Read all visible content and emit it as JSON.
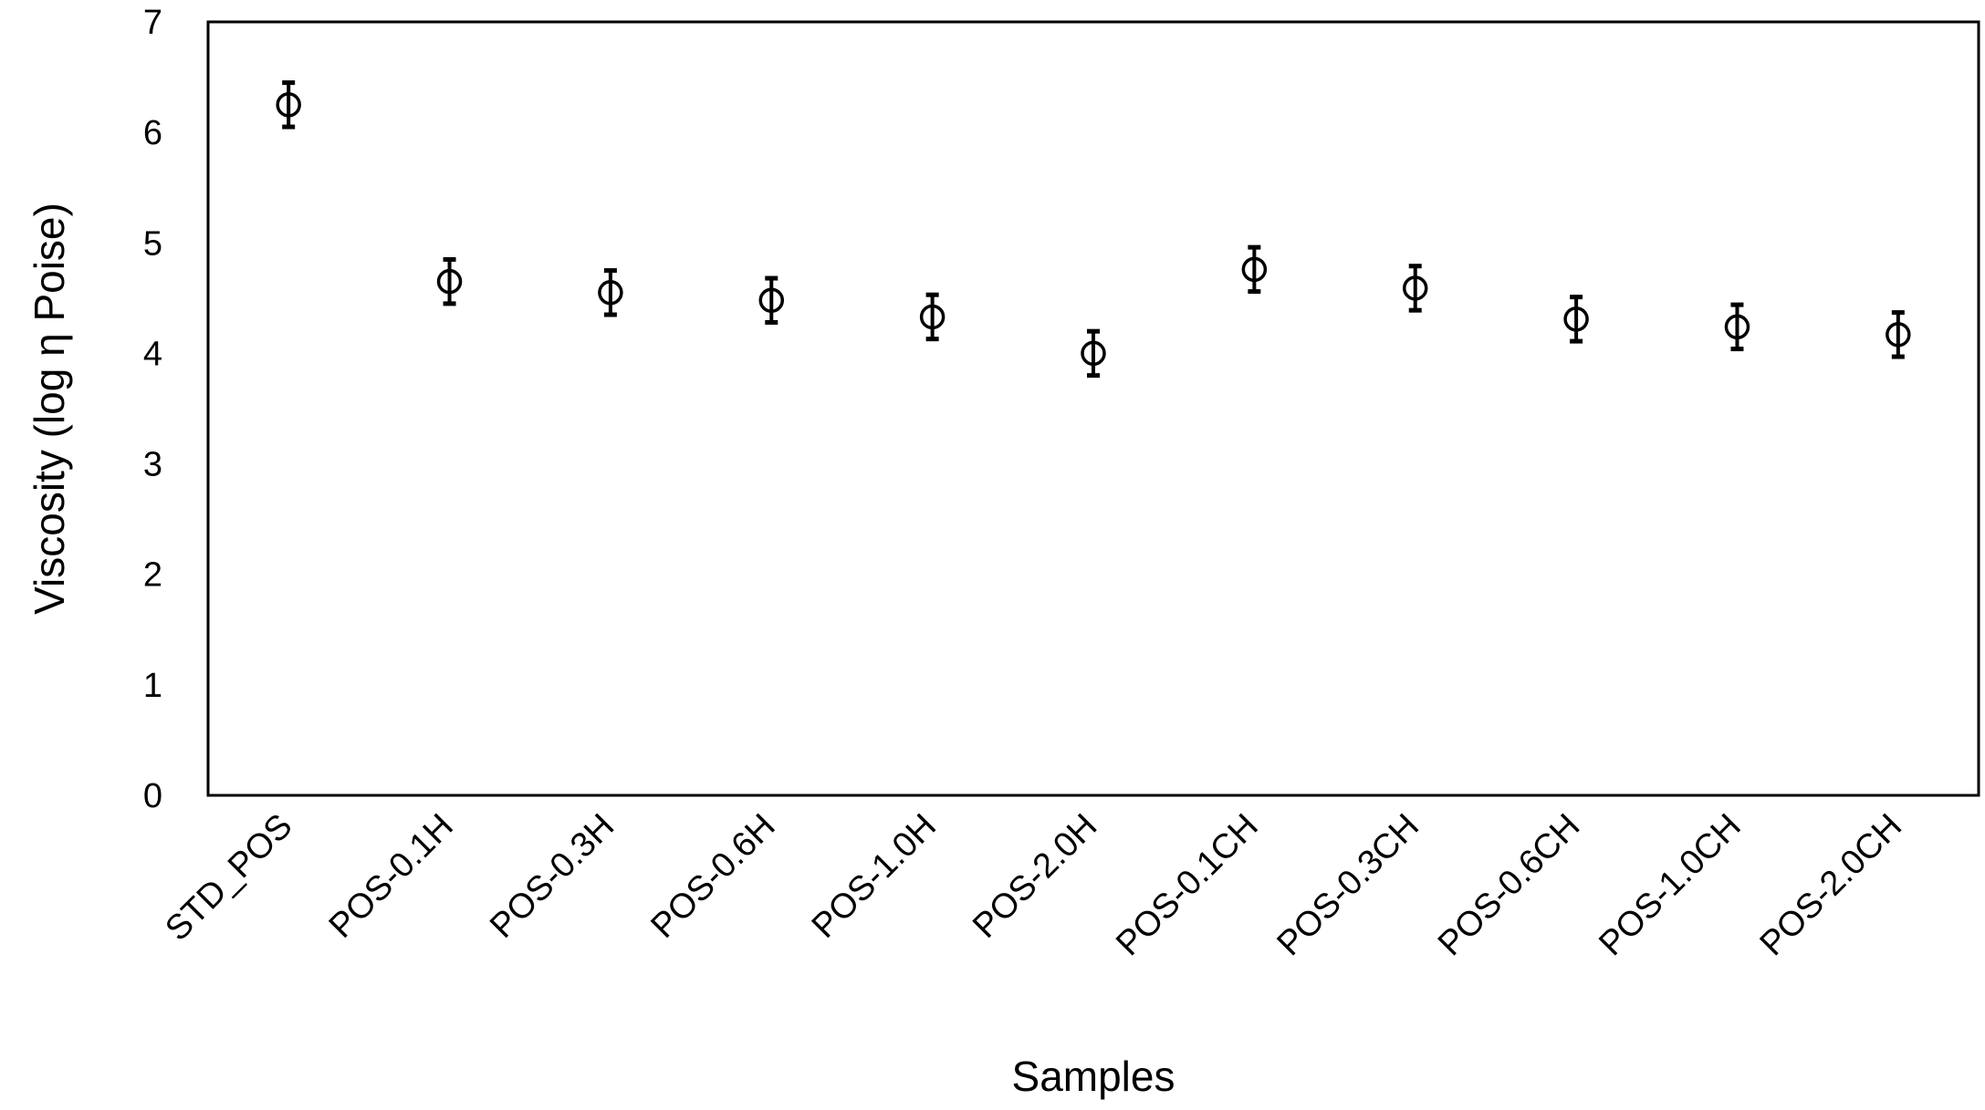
{
  "chart_data": {
    "type": "scatter",
    "title": "",
    "xlabel": "Samples",
    "ylabel": "Viscosity (log η Poise)",
    "ylim": [
      0,
      7
    ],
    "yticks": [
      "0",
      "1",
      "2",
      "3",
      "4",
      "5",
      "6",
      "7"
    ],
    "grid": false,
    "legend": "none",
    "marker": "open-circle",
    "error_bars": true,
    "colors": {
      "marker": "#000000",
      "axis": "#000000",
      "background": "#ffffff"
    },
    "categories": [
      "STD_POS",
      "POS-0.1H",
      "POS-0.3H",
      "POS-0.6H",
      "POS-1.0H",
      "POS-2.0H",
      "POS-0.1CH",
      "POS-0.3CH",
      "POS-0.6CH",
      "POS-1.0CH",
      "POS-2.0CH"
    ],
    "values": [
      6.25,
      4.65,
      4.55,
      4.48,
      4.33,
      4.0,
      4.76,
      4.59,
      4.31,
      4.24,
      4.17
    ],
    "errors": [
      0.2,
      0.2,
      0.2,
      0.2,
      0.2,
      0.2,
      0.2,
      0.2,
      0.2,
      0.2,
      0.2
    ]
  }
}
